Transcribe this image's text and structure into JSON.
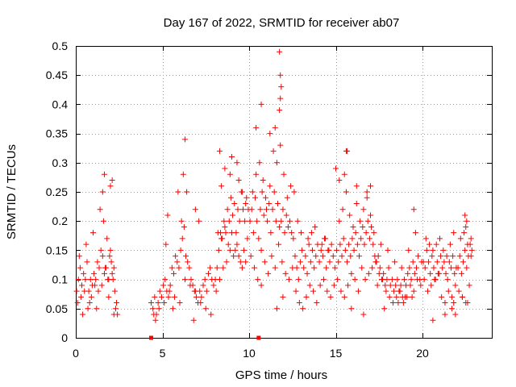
{
  "chart_data": {
    "type": "scatter",
    "title": "Day 167 of 2022, SRMTID for receiver ab07",
    "xlabel": "GPS time / hours",
    "ylabel": "SRMTID / TECUs",
    "xlim": [
      0,
      24
    ],
    "ylim": [
      0,
      0.5
    ],
    "xticks": [
      0,
      5,
      10,
      15,
      20
    ],
    "yticks": [
      0,
      0.05,
      0.1,
      0.15,
      0.2,
      0.25,
      0.3,
      0.35,
      0.4,
      0.45,
      0.5
    ],
    "xtick_labels": [
      "0",
      "5",
      "10",
      "15",
      "20"
    ],
    "ytick_labels": [
      "0",
      "0.05",
      "0.1",
      "0.15",
      "0.2",
      "0.25",
      "0.3",
      "0.35",
      "0.4",
      "0.45",
      "0.5"
    ],
    "grid": true,
    "marker": "+",
    "color": "#ff0000",
    "series": [
      {
        "name": "SRMTID",
        "x": [
          0.05,
          0.15,
          0.25,
          0.35,
          0.45,
          0.55,
          0.65,
          0.75,
          0.85,
          0.95,
          1.05,
          1.15,
          1.25,
          1.35,
          1.45,
          1.55,
          1.65,
          1.75,
          1.85,
          1.95,
          2.05,
          2.15,
          2.25,
          2.35,
          0.1,
          0.3,
          0.5,
          0.7,
          0.9,
          1.1,
          1.3,
          1.5,
          1.7,
          1.9,
          2.1,
          2.3,
          0.2,
          0.6,
          1.0,
          1.4,
          1.6,
          1.8,
          2.0,
          2.2,
          1.55,
          1.65,
          2.0,
          2.1,
          0.4,
          0.8,
          1.2,
          1.9,
          2.2,
          2.4,
          4.35,
          4.45,
          4.55,
          4.65,
          4.75,
          4.85,
          4.95,
          5.05,
          5.15,
          5.25,
          5.35,
          5.45,
          5.55,
          5.65,
          5.75,
          5.85,
          5.95,
          6.05,
          6.15,
          6.25,
          6.35,
          6.45,
          6.55,
          6.65,
          6.75,
          6.85,
          6.95,
          7.05,
          7.15,
          7.25,
          7.35,
          7.45,
          7.55,
          7.65,
          7.75,
          7.85,
          7.95,
          4.5,
          4.8,
          5.1,
          5.4,
          5.7,
          6.0,
          6.3,
          6.6,
          6.9,
          7.2,
          7.5,
          7.8,
          5.2,
          5.3,
          5.9,
          6.2,
          6.3,
          6.4,
          6.1,
          6.9,
          7.1,
          4.6,
          5.6,
          6.8,
          8.05,
          8.15,
          8.25,
          8.35,
          8.45,
          8.55,
          8.65,
          8.75,
          8.85,
          8.95,
          9.05,
          9.15,
          9.25,
          9.35,
          9.45,
          9.55,
          9.65,
          9.75,
          9.85,
          9.95,
          8.1,
          8.3,
          8.5,
          8.7,
          8.9,
          9.1,
          9.3,
          9.5,
          9.7,
          9.9,
          8.2,
          8.4,
          8.6,
          8.8,
          9.0,
          9.2,
          9.4,
          9.6,
          9.8,
          8.4,
          9.0,
          9.3,
          8.9,
          9.6,
          8.6,
          9.4,
          8.3,
          9.8,
          10.05,
          10.15,
          10.25,
          10.35,
          10.45,
          10.55,
          10.65,
          10.75,
          10.85,
          10.95,
          11.05,
          11.15,
          11.25,
          11.35,
          11.45,
          11.55,
          11.65,
          11.75,
          11.85,
          11.95,
          12.05,
          12.15,
          12.25,
          12.35,
          12.45,
          12.55,
          10.1,
          10.3,
          10.5,
          10.7,
          10.9,
          11.1,
          11.3,
          11.5,
          11.7,
          11.9,
          12.1,
          12.3,
          12.5,
          10.2,
          10.4,
          10.6,
          10.8,
          11.0,
          11.2,
          11.4,
          11.6,
          11.8,
          12.0,
          12.2,
          12.4,
          11.75,
          11.8,
          11.85,
          11.75,
          11.8,
          10.4,
          10.7,
          11.2,
          11.5,
          10.7,
          11.95,
          11.6,
          12.6,
          12.65,
          12.75,
          12.85,
          12.95,
          13.05,
          13.15,
          13.25,
          13.35,
          13.45,
          13.55,
          13.65,
          13.75,
          13.85,
          13.95,
          14.05,
          14.15,
          14.25,
          14.35,
          14.45,
          14.55,
          14.65,
          14.75,
          14.85,
          14.95,
          12.7,
          12.9,
          13.1,
          13.3,
          13.5,
          13.7,
          13.9,
          14.1,
          14.3,
          14.5,
          14.7,
          14.9,
          13.0,
          13.4,
          13.8,
          14.2,
          14.6,
          12.8,
          13.6,
          14.4,
          15.05,
          15.15,
          15.25,
          15.35,
          15.45,
          15.55,
          15.65,
          15.75,
          15.85,
          15.95,
          16.05,
          16.15,
          16.25,
          16.35,
          16.45,
          16.55,
          16.65,
          16.75,
          16.85,
          16.95,
          17.05,
          17.15,
          17.25,
          17.35,
          15.1,
          15.3,
          15.5,
          15.7,
          15.9,
          16.1,
          16.3,
          16.5,
          16.7,
          16.9,
          17.1,
          17.3,
          15.2,
          15.4,
          15.6,
          15.8,
          16.0,
          16.2,
          16.4,
          16.6,
          16.8,
          17.0,
          17.2,
          15.6,
          15.65,
          15.0,
          15.5,
          15.2,
          16.2,
          17.0,
          16.8,
          15.9,
          16.6,
          17.4,
          17.45,
          17.55,
          17.65,
          17.75,
          17.85,
          17.95,
          18.05,
          18.15,
          18.25,
          18.35,
          18.45,
          18.55,
          18.65,
          18.75,
          18.85,
          18.95,
          19.05,
          19.15,
          19.25,
          19.35,
          19.45,
          19.55,
          19.65,
          19.75,
          19.85,
          19.95,
          17.5,
          17.7,
          17.9,
          18.1,
          18.3,
          18.5,
          18.7,
          18.9,
          19.1,
          19.3,
          19.5,
          19.7,
          19.9,
          17.6,
          18.0,
          18.4,
          18.8,
          19.2,
          19.6,
          19.5,
          18.6,
          17.8,
          19.0,
          19.4,
          20.05,
          20.15,
          20.25,
          20.35,
          20.45,
          20.55,
          20.65,
          20.75,
          20.85,
          20.95,
          21.05,
          21.15,
          21.25,
          21.35,
          21.45,
          21.55,
          21.65,
          21.75,
          21.85,
          21.95,
          20.1,
          20.3,
          20.5,
          20.7,
          20.9,
          21.1,
          21.3,
          21.5,
          21.7,
          21.9,
          20.2,
          20.4,
          20.6,
          20.8,
          21.0,
          21.2,
          21.4,
          21.6,
          21.8,
          21.3,
          21.7,
          21.8,
          21.9,
          20.6,
          22.05,
          22.15,
          22.25,
          22.35,
          22.45,
          22.55,
          22.65,
          22.75,
          22.85,
          22.1,
          22.3,
          22.5,
          22.7,
          22.2,
          22.4,
          22.6,
          22.8,
          22.45,
          22.55,
          22.5,
          22.8,
          22.3,
          22.6
        ],
        "y": [
          0.08,
          0.1,
          0.12,
          0.09,
          0.11,
          0.1,
          0.13,
          0.08,
          0.1,
          0.09,
          0.11,
          0.1,
          0.13,
          0.12,
          0.15,
          0.14,
          0.11,
          0.12,
          0.1,
          0.14,
          0.13,
          0.1,
          0.08,
          0.06,
          0.06,
          0.07,
          0.08,
          0.05,
          0.07,
          0.09,
          0.08,
          0.09,
          0.12,
          0.1,
          0.11,
          0.05,
          0.14,
          0.16,
          0.18,
          0.22,
          0.2,
          0.17,
          0.15,
          0.12,
          0.25,
          0.28,
          0.26,
          0.27,
          0.04,
          0.06,
          0.05,
          0.07,
          0.04,
          0.04,
          0.06,
          0.05,
          0.07,
          0.04,
          0.06,
          0.08,
          0.07,
          0.09,
          0.1,
          0.08,
          0.07,
          0.09,
          0.12,
          0.11,
          0.14,
          0.13,
          0.12,
          0.15,
          0.17,
          0.19,
          0.14,
          0.13,
          0.12,
          0.1,
          0.09,
          0.08,
          0.07,
          0.06,
          0.08,
          0.07,
          0.09,
          0.1,
          0.08,
          0.11,
          0.12,
          0.1,
          0.09,
          0.04,
          0.05,
          0.06,
          0.08,
          0.07,
          0.06,
          0.1,
          0.09,
          0.08,
          0.06,
          0.05,
          0.04,
          0.16,
          0.21,
          0.25,
          0.28,
          0.34,
          0.25,
          0.2,
          0.22,
          0.2,
          0.03,
          0.05,
          0.03,
          0.1,
          0.12,
          0.15,
          0.18,
          0.17,
          0.2,
          0.18,
          0.22,
          0.2,
          0.24,
          0.21,
          0.23,
          0.18,
          0.22,
          0.2,
          0.25,
          0.22,
          0.2,
          0.24,
          0.22,
          0.08,
          0.1,
          0.12,
          0.13,
          0.15,
          0.14,
          0.16,
          0.13,
          0.15,
          0.17,
          0.18,
          0.17,
          0.19,
          0.16,
          0.18,
          0.15,
          0.14,
          0.12,
          0.13,
          0.26,
          0.31,
          0.3,
          0.28,
          0.25,
          0.29,
          0.27,
          0.32,
          0.23,
          0.2,
          0.22,
          0.18,
          0.24,
          0.2,
          0.17,
          0.22,
          0.25,
          0.21,
          0.24,
          0.2,
          0.23,
          0.18,
          0.22,
          0.25,
          0.2,
          0.23,
          0.19,
          0.2,
          0.22,
          0.18,
          0.21,
          0.19,
          0.2,
          0.18,
          0.17,
          0.14,
          0.12,
          0.1,
          0.15,
          0.13,
          0.11,
          0.14,
          0.12,
          0.16,
          0.13,
          0.11,
          0.1,
          0.12,
          0.25,
          0.28,
          0.3,
          0.27,
          0.22,
          0.26,
          0.32,
          0.3,
          0.33,
          0.28,
          0.24,
          0.26,
          0.49,
          0.45,
          0.43,
          0.39,
          0.41,
          0.36,
          0.4,
          0.35,
          0.36,
          0.09,
          0.07,
          0.05,
          0.25,
          0.14,
          0.12,
          0.1,
          0.13,
          0.15,
          0.12,
          0.14,
          0.11,
          0.16,
          0.13,
          0.15,
          0.12,
          0.14,
          0.16,
          0.13,
          0.15,
          0.14,
          0.17,
          0.12,
          0.15,
          0.13,
          0.16,
          0.14,
          0.12,
          0.08,
          0.06,
          0.05,
          0.07,
          0.09,
          0.08,
          0.06,
          0.09,
          0.1,
          0.08,
          0.07,
          0.09,
          0.18,
          0.17,
          0.19,
          0.16,
          0.15,
          0.2,
          0.18,
          0.17,
          0.15,
          0.13,
          0.16,
          0.14,
          0.17,
          0.15,
          0.13,
          0.16,
          0.14,
          0.17,
          0.15,
          0.18,
          0.16,
          0.14,
          0.17,
          0.19,
          0.16,
          0.18,
          0.2,
          0.17,
          0.19,
          0.16,
          0.14,
          0.13,
          0.1,
          0.08,
          0.07,
          0.09,
          0.11,
          0.1,
          0.08,
          0.12,
          0.1,
          0.11,
          0.12,
          0.13,
          0.2,
          0.22,
          0.25,
          0.21,
          0.19,
          0.23,
          0.2,
          0.22,
          0.24,
          0.21,
          0.18,
          0.32,
          0.32,
          0.29,
          0.28,
          0.27,
          0.26,
          0.26,
          0.25,
          0.05,
          0.04,
          0.09,
          0.14,
          0.12,
          0.1,
          0.11,
          0.09,
          0.1,
          0.12,
          0.09,
          0.1,
          0.08,
          0.09,
          0.1,
          0.08,
          0.09,
          0.07,
          0.1,
          0.09,
          0.11,
          0.12,
          0.1,
          0.13,
          0.11,
          0.12,
          0.14,
          0.1,
          0.13,
          0.11,
          0.1,
          0.08,
          0.07,
          0.06,
          0.07,
          0.08,
          0.06,
          0.07,
          0.09,
          0.08,
          0.1,
          0.09,
          0.16,
          0.15,
          0.13,
          0.12,
          0.15,
          0.18,
          0.22,
          0.06,
          0.05,
          0.07,
          0.07,
          0.13,
          0.12,
          0.15,
          0.13,
          0.11,
          0.14,
          0.12,
          0.1,
          0.13,
          0.11,
          0.14,
          0.12,
          0.13,
          0.11,
          0.1,
          0.13,
          0.12,
          0.14,
          0.11,
          0.12,
          0.1,
          0.08,
          0.09,
          0.1,
          0.11,
          0.07,
          0.06,
          0.08,
          0.07,
          0.09,
          0.17,
          0.16,
          0.15,
          0.16,
          0.17,
          0.15,
          0.14,
          0.16,
          0.18,
          0.04,
          0.05,
          0.06,
          0.04,
          0.03,
          0.12,
          0.14,
          0.11,
          0.13,
          0.15,
          0.12,
          0.14,
          0.16,
          0.15,
          0.08,
          0.07,
          0.06,
          0.09,
          0.17,
          0.18,
          0.16,
          0.17,
          0.21,
          0.2,
          0.19,
          0.14,
          0.07,
          0.06
        ]
      }
    ],
    "baseline_markers": {
      "x": [
        4.35,
        10.55
      ],
      "y": [
        0,
        0
      ]
    }
  }
}
